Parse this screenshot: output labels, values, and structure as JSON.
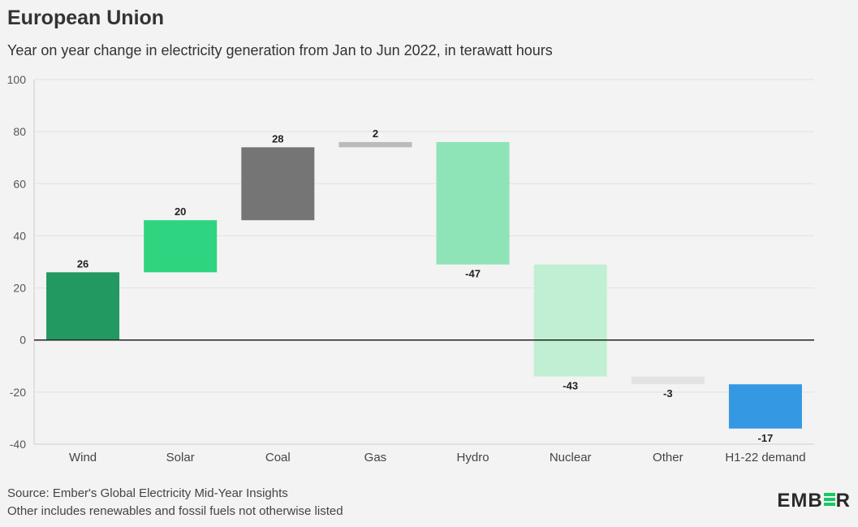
{
  "header": {
    "title": "European Union",
    "subtitle": "Year on year change in electricity generation from Jan to Jun 2022, in terawatt hours"
  },
  "footer": {
    "source": "Source: Ember's Global Electricity Mid-Year Insights",
    "note": "Other includes renewables and fossil fuels not otherwise listed"
  },
  "logo": {
    "prefix": "EMB",
    "suffix": "R",
    "accent_color": "#17c964"
  },
  "chart_data": {
    "type": "bar",
    "subtype": "waterfall",
    "title": "European Union",
    "subtitle": "Year on year change in electricity generation from Jan to Jun 2022, in terawatt hours",
    "xlabel": "",
    "ylabel": "",
    "ylim": [
      -40,
      100
    ],
    "yticks": [
      100,
      80,
      60,
      40,
      20,
      0,
      -20,
      -40
    ],
    "grid": true,
    "categories": [
      "Wind",
      "Solar",
      "Coal",
      "Gas",
      "Hydro",
      "Nuclear",
      "Other",
      "H1-22 demand"
    ],
    "values": [
      26,
      20,
      28,
      2,
      -47,
      -43,
      -3,
      -17
    ],
    "labels": [
      "26",
      "20",
      "28",
      "2",
      "-47",
      "-43",
      "-3",
      "-17"
    ],
    "colors": [
      "#229960",
      "#2ed47f",
      "#757575",
      "#bbbbbb",
      "#8ee4b6",
      "#c0efd3",
      "#e3e3e3",
      "#3598e3"
    ]
  }
}
